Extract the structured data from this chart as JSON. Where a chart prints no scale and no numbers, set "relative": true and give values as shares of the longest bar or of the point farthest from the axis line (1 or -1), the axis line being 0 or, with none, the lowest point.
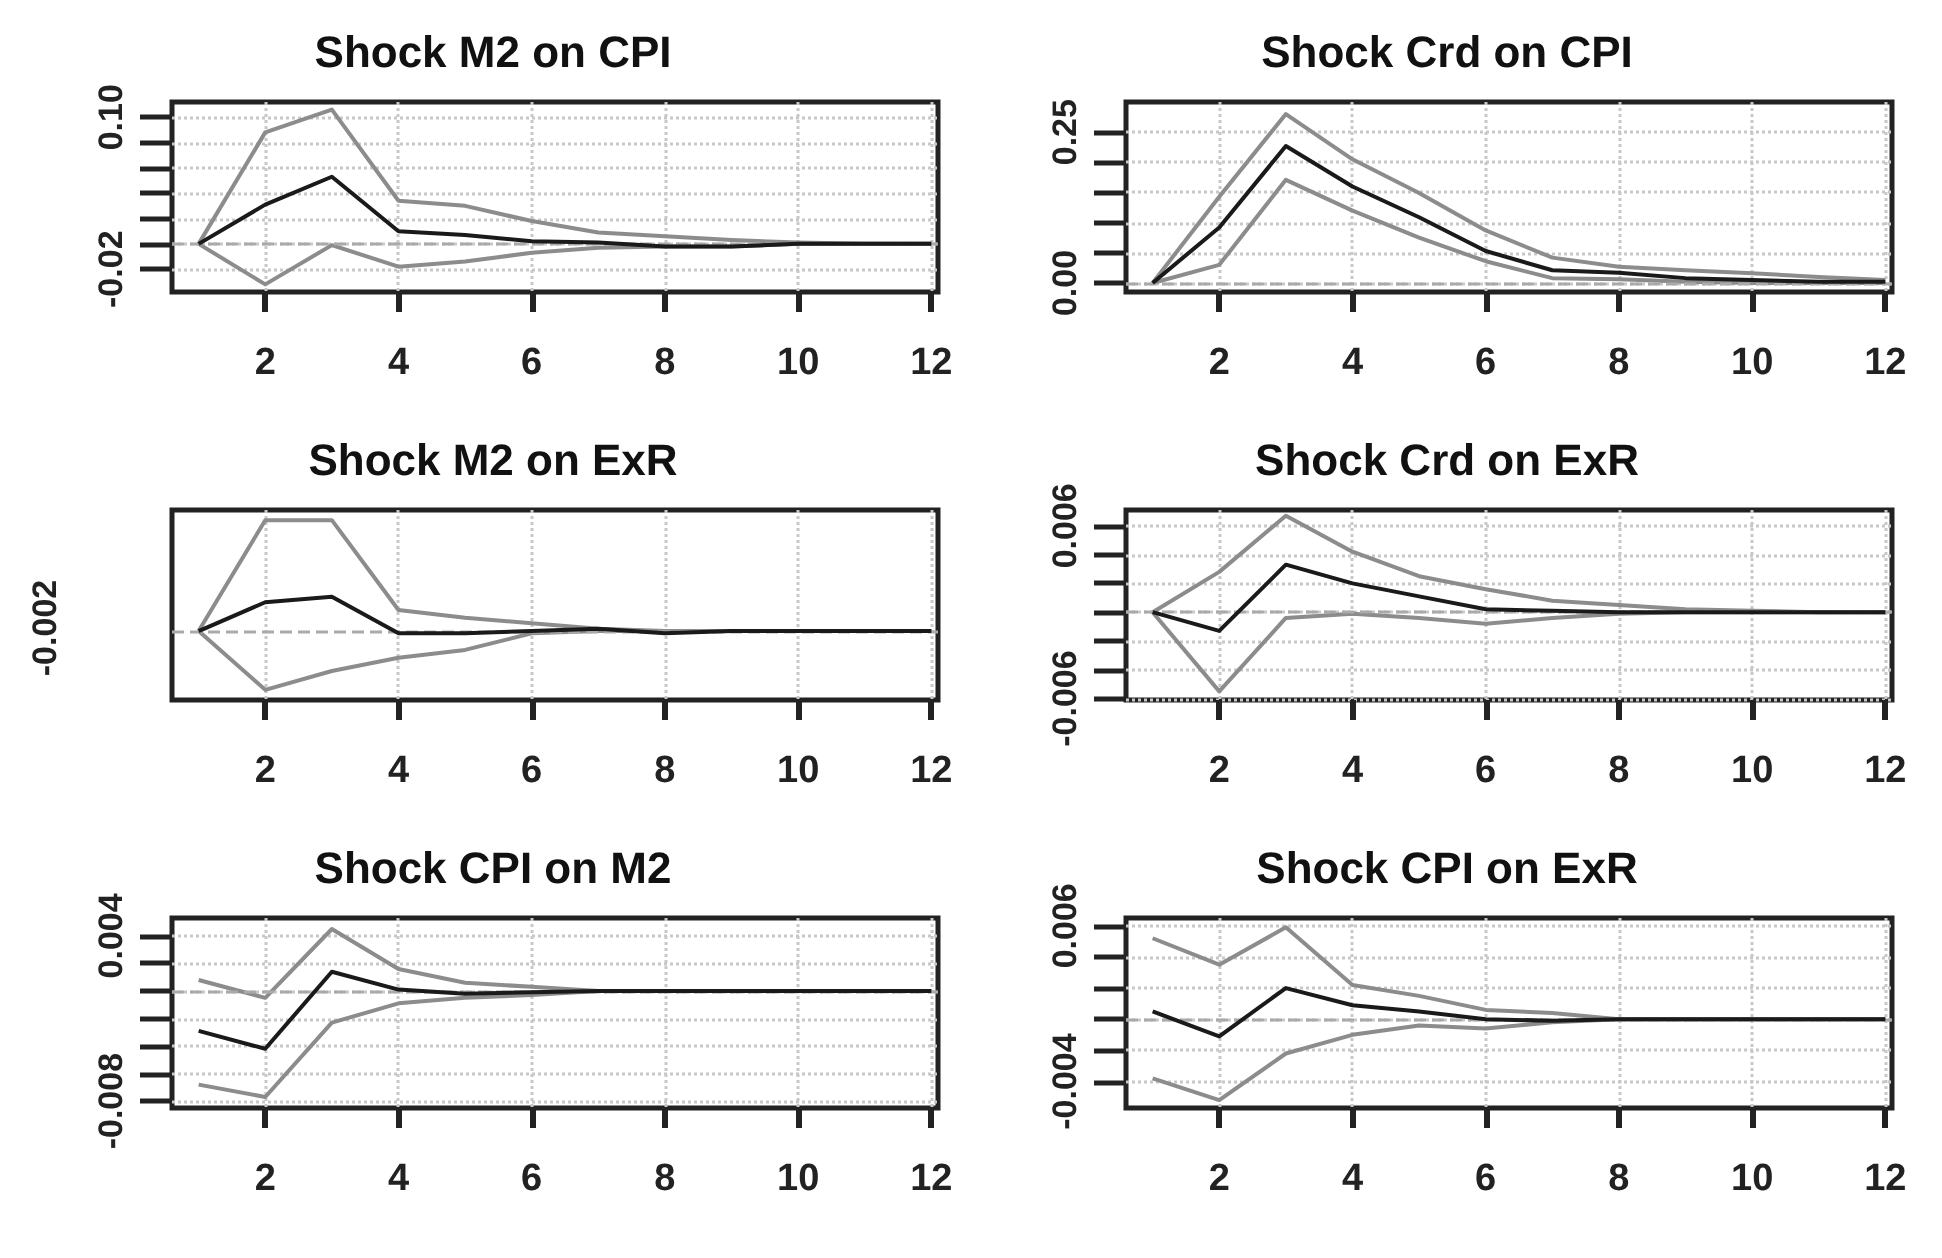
{
  "chart_data": [
    {
      "type": "line",
      "title": "Shock M2 on CPI",
      "x": [
        1,
        2,
        3,
        4,
        5,
        6,
        7,
        8,
        9,
        10,
        11,
        12
      ],
      "xlim": [
        0.6,
        12.1
      ],
      "xticks": [
        2,
        4,
        6,
        8,
        10,
        12
      ],
      "ylim": [
        -0.038,
        0.112
      ],
      "yticks": [
        -0.02,
        {
          "value": 0,
          "label": null
        },
        {
          "value": 0.02,
          "label": null
        },
        {
          "value": 0.04,
          "label": null
        },
        {
          "value": 0.06,
          "label": null
        },
        {
          "value": 0.08,
          "label": null
        },
        {
          "value": 0.1,
          "label": "0.10"
        }
      ],
      "grid": true,
      "ref_lines": [
        {
          "axis": "y",
          "value": 0,
          "color": "#aaaaaa",
          "line_style": "dashed"
        }
      ],
      "series": [
        {
          "color": "#8c8c8c",
          "values": [
            0,
            0.088,
            0.106,
            0.034,
            0.03,
            0.018,
            0.009,
            0.006,
            0.003,
            0.001,
            0,
            0
          ]
        },
        {
          "color": "#8c8c8c",
          "values": [
            0,
            -0.032,
            -0.001,
            -0.018,
            -0.014,
            -0.007,
            -0.003,
            -0.002,
            -0.002,
            0,
            0,
            0
          ]
        },
        {
          "color": "#1a1a1a",
          "values": [
            0,
            0.031,
            0.053,
            0.01,
            0.007,
            0.002,
            0.001,
            -0.002,
            -0.002,
            0,
            0,
            0
          ]
        }
      ]
    },
    {
      "type": "line",
      "title": "Shock Crd on CPI",
      "x": [
        1,
        2,
        3,
        4,
        5,
        6,
        7,
        8,
        9,
        10,
        11,
        12
      ],
      "xlim": [
        0.6,
        12.1
      ],
      "xticks": [
        2,
        4,
        6,
        8,
        10,
        12
      ],
      "ylim": [
        -0.015,
        0.3
      ],
      "yticks": [
        {
          "value": 0,
          "label": "0.00"
        },
        {
          "value": 0.05,
          "label": null
        },
        {
          "value": 0.1,
          "label": null
        },
        {
          "value": 0.15,
          "label": null
        },
        {
          "value": 0.2,
          "label": null
        },
        0.25
      ],
      "grid": true,
      "ref_lines": [
        {
          "axis": "y",
          "value": 0,
          "color": "#aaaaaa",
          "line_style": "dashed"
        }
      ],
      "series": [
        {
          "color": "#8c8c8c",
          "values": [
            0,
            0.143,
            0.28,
            0.205,
            0.149,
            0.087,
            0.042,
            0.027,
            0.021,
            0.016,
            0.01,
            0.005
          ]
        },
        {
          "color": "#8c8c8c",
          "values": [
            0,
            0.03,
            0.171,
            0.12,
            0.075,
            0.036,
            0.008,
            0.006,
            0.002,
            0,
            0,
            0
          ]
        },
        {
          "color": "#1a1a1a",
          "values": [
            0,
            0.092,
            0.227,
            0.16,
            0.109,
            0.053,
            0.021,
            0.017,
            0.008,
            0.005,
            0.002,
            0.002
          ]
        }
      ]
    },
    {
      "type": "line",
      "title": "Shock M2 on ExR",
      "x": [
        1,
        2,
        3,
        4,
        5,
        6,
        7,
        8,
        9,
        10,
        11,
        12
      ],
      "xlim": [
        0.6,
        12.1
      ],
      "xticks": [
        2,
        4,
        6,
        8,
        10,
        12
      ],
      "relative": true,
      "annotations": [
        "-0.002"
      ],
      "grid": true,
      "ref_lines": [
        {
          "axis": "y",
          "value": 0,
          "color": "#aaaaaa",
          "line_style": "dashed"
        }
      ],
      "series": [
        {
          "color": "#8c8c8c",
          "values": [
            0,
            1,
            1,
            0.19,
            0.12,
            0.07,
            0.02,
            0,
            0,
            0,
            0,
            0
          ]
        },
        {
          "color": "#8c8c8c",
          "values": [
            0,
            -0.53,
            -0.36,
            -0.24,
            -0.17,
            -0.02,
            0,
            0,
            0,
            0,
            0,
            0
          ]
        },
        {
          "color": "#1a1a1a",
          "values": [
            0,
            0.26,
            0.31,
            -0.02,
            -0.02,
            0,
            0.02,
            -0.02,
            0,
            0,
            0,
            0
          ]
        }
      ]
    },
    {
      "type": "line",
      "title": "Shock Crd on ExR",
      "x": [
        1,
        2,
        3,
        4,
        5,
        6,
        7,
        8,
        9,
        10,
        11,
        12
      ],
      "xlim": [
        0.6,
        12.1
      ],
      "xticks": [
        2,
        4,
        6,
        8,
        10,
        12
      ],
      "ylim": [
        -0.0061,
        0.0071
      ],
      "yticks": [
        -0.006,
        {
          "value": -0.004,
          "label": null
        },
        {
          "value": -0.002,
          "label": null
        },
        {
          "value": 0,
          "label": null
        },
        {
          "value": 0.002,
          "label": null
        },
        {
          "value": 0.004,
          "label": null
        },
        0.006
      ],
      "grid": true,
      "ref_lines": [
        {
          "axis": "y",
          "value": 0,
          "color": "#aaaaaa",
          "line_style": "dashed"
        }
      ],
      "series": [
        {
          "color": "#8c8c8c",
          "values": [
            0,
            0.0028,
            0.0067,
            0.0042,
            0.0025,
            0.0016,
            0.0008,
            0.0005,
            0.0002,
            0.0001,
            0,
            0
          ]
        },
        {
          "color": "#8c8c8c",
          "values": [
            0,
            -0.0055,
            -0.0004,
            -0.0001,
            -0.0004,
            -0.0008,
            -0.0004,
            -0.0001,
            0,
            0,
            0,
            0
          ]
        },
        {
          "color": "#1a1a1a",
          "values": [
            0,
            -0.0013,
            0.0033,
            0.002,
            0.0011,
            0.0002,
            0.0001,
            0,
            0,
            0,
            0,
            0
          ]
        }
      ]
    },
    {
      "type": "line",
      "title": "Shock CPI on M2",
      "x": [
        1,
        2,
        3,
        4,
        5,
        6,
        7,
        8,
        9,
        10,
        11,
        12
      ],
      "xlim": [
        0.6,
        12.1
      ],
      "xticks": [
        2,
        4,
        6,
        8,
        10,
        12
      ],
      "ylim": [
        -0.0085,
        0.0053
      ],
      "yticks": [
        -0.008,
        {
          "value": -0.006,
          "label": null
        },
        {
          "value": -0.004,
          "label": null
        },
        {
          "value": -0.002,
          "label": null
        },
        {
          "value": 0,
          "label": null
        },
        {
          "value": 0.002,
          "label": null
        },
        0.004
      ],
      "grid": true,
      "ref_lines": [
        {
          "axis": "y",
          "value": 0,
          "color": "#aaaaaa",
          "line_style": "dashed"
        }
      ],
      "series": [
        {
          "color": "#8c8c8c",
          "values": [
            0.0008,
            -0.0005,
            0.0045,
            0.0016,
            0.0006,
            0.0003,
            0,
            0,
            0,
            0,
            0,
            0
          ]
        },
        {
          "color": "#8c8c8c",
          "values": [
            -0.0068,
            -0.0077,
            -0.0023,
            -0.0009,
            -0.0005,
            -0.0003,
            0,
            0,
            0,
            0,
            0,
            0
          ]
        },
        {
          "color": "#1a1a1a",
          "values": [
            -0.0029,
            -0.0042,
            0.0014,
            0.0001,
            -0.0002,
            -0.0001,
            0,
            0,
            0,
            0,
            0,
            0
          ]
        }
      ]
    },
    {
      "type": "line",
      "title": "Shock CPI on ExR",
      "x": [
        1,
        2,
        3,
        4,
        5,
        6,
        7,
        8,
        9,
        10,
        11,
        12
      ],
      "xlim": [
        0.6,
        12.1
      ],
      "xticks": [
        2,
        4,
        6,
        8,
        10,
        12
      ],
      "ylim": [
        -0.0057,
        0.0065
      ],
      "yticks": [
        -0.004,
        {
          "value": -0.002,
          "label": null
        },
        {
          "value": 0,
          "label": null
        },
        {
          "value": 0.002,
          "label": null
        },
        {
          "value": 0.004,
          "label": null
        },
        0.006
      ],
      "grid": true,
      "ref_lines": [
        {
          "axis": "y",
          "value": 0,
          "color": "#aaaaaa",
          "line_style": "dashed"
        }
      ],
      "series": [
        {
          "color": "#8c8c8c",
          "values": [
            0.0052,
            0.0035,
            0.0059,
            0.0022,
            0.0015,
            0.0006,
            0.0004,
            0,
            0,
            0,
            0,
            0
          ]
        },
        {
          "color": "#8c8c8c",
          "values": [
            -0.0038,
            -0.0052,
            -0.0022,
            -0.001,
            -0.0004,
            -0.0006,
            -0.0002,
            0,
            0,
            0,
            0,
            0
          ]
        },
        {
          "color": "#1a1a1a",
          "values": [
            0.0005,
            -0.0011,
            0.002,
            0.0009,
            0.0005,
            0,
            -0.0001,
            0,
            0,
            0,
            0,
            0
          ]
        }
      ]
    }
  ]
}
